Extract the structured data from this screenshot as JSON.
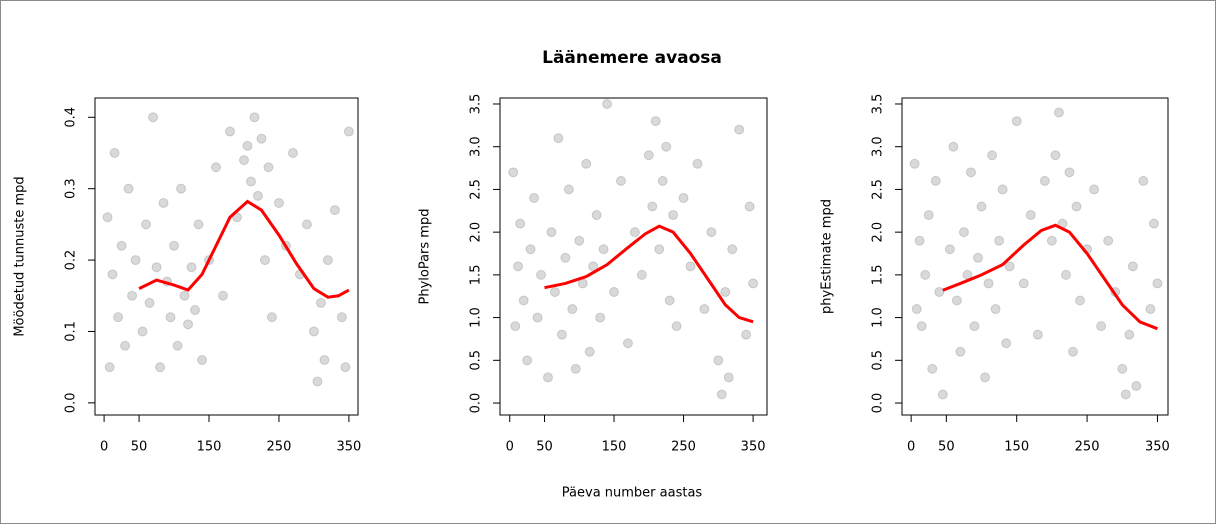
{
  "title": "Läänemere avaosa",
  "x_label": "Päeva number aastas",
  "chart_data": [
    {
      "type": "scatter",
      "y_label": "Möödetud tunnuste mpd",
      "color": "#000000",
      "opacity": 0.15,
      "xlim": [
        -13,
        363
      ],
      "ylim": [
        -0.017,
        0.427
      ],
      "xticks": [
        0,
        50,
        150,
        250,
        350
      ],
      "yticks": [
        {
          "value": 0,
          "label": "0.0"
        },
        {
          "value": 0.1,
          "label": "0.1"
        },
        {
          "value": 0.2,
          "label": "0.2"
        },
        {
          "value": 0.3,
          "label": "0.3"
        },
        {
          "value": 0.4,
          "label": "0.4"
        }
      ],
      "x": [
        5,
        8,
        12,
        15,
        20,
        25,
        30,
        35,
        40,
        45,
        55,
        60,
        65,
        70,
        75,
        80,
        85,
        90,
        95,
        100,
        105,
        110,
        115,
        120,
        125,
        130,
        135,
        140,
        150,
        160,
        170,
        180,
        190,
        200,
        205,
        210,
        215,
        220,
        225,
        230,
        235,
        240,
        250,
        260,
        270,
        280,
        290,
        300,
        305,
        310,
        315,
        320,
        330,
        340,
        350,
        345
      ],
      "y": [
        0.26,
        0.05,
        0.18,
        0.35,
        0.12,
        0.22,
        0.08,
        0.3,
        0.15,
        0.2,
        0.1,
        0.25,
        0.14,
        0.4,
        0.19,
        0.05,
        0.28,
        0.17,
        0.12,
        0.22,
        0.08,
        0.3,
        0.15,
        0.11,
        0.19,
        0.13,
        0.25,
        0.06,
        0.2,
        0.33,
        0.15,
        0.38,
        0.26,
        0.34,
        0.36,
        0.31,
        0.4,
        0.29,
        0.37,
        0.2,
        0.33,
        0.12,
        0.28,
        0.22,
        0.35,
        0.18,
        0.25,
        0.1,
        0.03,
        0.14,
        0.06,
        0.2,
        0.27,
        0.12,
        0.38,
        0.05
      ],
      "smooth": {
        "color": "#ff0000",
        "x": [
          50,
          75,
          100,
          120,
          140,
          160,
          180,
          205,
          225,
          250,
          275,
          300,
          320,
          335,
          350
        ],
        "y": [
          0.16,
          0.172,
          0.165,
          0.158,
          0.18,
          0.22,
          0.26,
          0.282,
          0.27,
          0.235,
          0.195,
          0.16,
          0.148,
          0.15,
          0.158
        ]
      }
    },
    {
      "type": "scatter",
      "y_label": "PhyloPars mpd",
      "color": "#000000",
      "opacity": 0.15,
      "xlim": [
        -14,
        370
      ],
      "ylim": [
        -0.14,
        3.57
      ],
      "xticks": [
        0,
        50,
        150,
        250,
        350
      ],
      "yticks": [
        {
          "value": 0,
          "label": "0.0"
        },
        0.5,
        {
          "value": 1,
          "label": "1.0"
        },
        1.5,
        {
          "value": 2,
          "label": "2.0"
        },
        2.5,
        {
          "value": 3,
          "label": "3.0"
        },
        3.5
      ],
      "x": [
        5,
        8,
        12,
        15,
        20,
        25,
        30,
        35,
        40,
        45,
        55,
        60,
        65,
        70,
        75,
        80,
        85,
        90,
        95,
        100,
        105,
        110,
        115,
        120,
        125,
        130,
        135,
        140,
        150,
        160,
        170,
        180,
        190,
        200,
        205,
        210,
        215,
        220,
        225,
        230,
        235,
        240,
        250,
        260,
        270,
        280,
        290,
        300,
        305,
        310,
        315,
        320,
        330,
        340,
        350,
        345
      ],
      "y": [
        2.7,
        0.9,
        1.6,
        2.1,
        1.2,
        0.5,
        1.8,
        2.4,
        1.0,
        1.5,
        0.3,
        2.0,
        1.3,
        3.1,
        0.8,
        1.7,
        2.5,
        1.1,
        0.4,
        1.9,
        1.4,
        2.8,
        0.6,
        1.6,
        2.2,
        1.0,
        1.8,
        3.5,
        1.3,
        2.6,
        0.7,
        2.0,
        1.5,
        2.9,
        2.3,
        3.3,
        1.8,
        2.6,
        3.0,
        1.2,
        2.2,
        0.9,
        2.4,
        1.6,
        2.8,
        1.1,
        2.0,
        0.5,
        0.1,
        1.3,
        0.3,
        1.8,
        3.2,
        0.8,
        1.4,
        2.3
      ],
      "smooth": {
        "color": "#ff0000",
        "x": [
          50,
          80,
          110,
          140,
          170,
          195,
          215,
          235,
          260,
          285,
          310,
          330,
          350
        ],
        "y": [
          1.35,
          1.4,
          1.48,
          1.62,
          1.82,
          1.98,
          2.07,
          2.0,
          1.75,
          1.45,
          1.15,
          1.0,
          0.95
        ]
      }
    },
    {
      "type": "scatter",
      "y_label": "phyEstimate mpd",
      "color": "#000000",
      "opacity": 0.15,
      "xlim": [
        -13,
        365
      ],
      "ylim": [
        -0.14,
        3.57
      ],
      "xticks": [
        0,
        50,
        150,
        250,
        350
      ],
      "yticks": [
        {
          "value": 0,
          "label": "0.0"
        },
        0.5,
        {
          "value": 1,
          "label": "1.0"
        },
        1.5,
        {
          "value": 2,
          "label": "2.0"
        },
        2.5,
        {
          "value": 3,
          "label": "3.0"
        },
        3.5
      ],
      "x": [
        5,
        8,
        12,
        15,
        20,
        25,
        30,
        35,
        40,
        45,
        55,
        60,
        65,
        70,
        75,
        80,
        85,
        90,
        95,
        100,
        105,
        110,
        115,
        120,
        125,
        130,
        135,
        140,
        150,
        160,
        170,
        180,
        190,
        200,
        205,
        210,
        215,
        220,
        225,
        230,
        235,
        240,
        250,
        260,
        270,
        280,
        290,
        300,
        305,
        310,
        315,
        320,
        330,
        340,
        350,
        345
      ],
      "y": [
        2.8,
        1.1,
        1.9,
        0.9,
        1.5,
        2.2,
        0.4,
        2.6,
        1.3,
        0.1,
        1.8,
        3.0,
        1.2,
        0.6,
        2.0,
        1.5,
        2.7,
        0.9,
        1.7,
        2.3,
        0.3,
        1.4,
        2.9,
        1.1,
        1.9,
        2.5,
        0.7,
        1.6,
        3.3,
        1.4,
        2.2,
        0.8,
        2.6,
        1.9,
        2.9,
        3.4,
        2.1,
        1.5,
        2.7,
        0.6,
        2.3,
        1.2,
        1.8,
        2.5,
        0.9,
        1.9,
        1.3,
        0.4,
        0.1,
        0.8,
        1.6,
        0.2,
        2.6,
        1.1,
        1.4,
        2.1
      ],
      "smooth": {
        "color": "#ff0000",
        "x": [
          45,
          70,
          100,
          130,
          160,
          185,
          205,
          225,
          250,
          275,
          300,
          325,
          350
        ],
        "y": [
          1.32,
          1.4,
          1.5,
          1.62,
          1.85,
          2.02,
          2.08,
          2.0,
          1.75,
          1.45,
          1.15,
          0.95,
          0.87
        ]
      }
    }
  ]
}
